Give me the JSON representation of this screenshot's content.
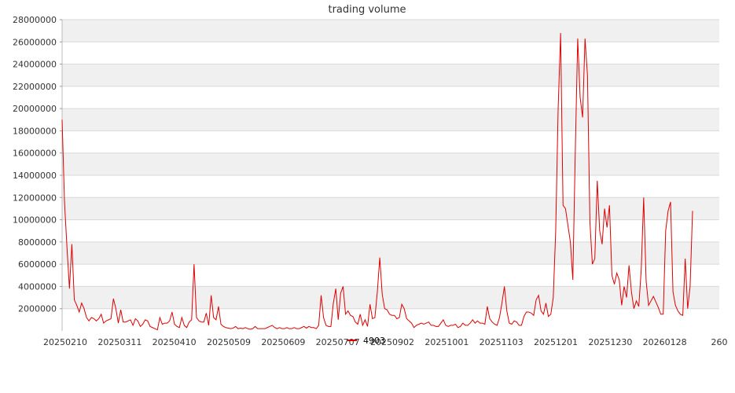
{
  "chart_data": {
    "type": "line",
    "title": "trading volume",
    "xlabel": "",
    "ylabel": "",
    "ylim": [
      0,
      28000000
    ],
    "y_ticks": [
      "2000000",
      "4000000",
      "6000000",
      "8000000",
      "10000000",
      "12000000",
      "14000000",
      "16000000",
      "18000000",
      "20000000",
      "22000000",
      "24000000",
      "26000000",
      "28000000"
    ],
    "x_ticks": [
      "20250210",
      "20250311",
      "20250410",
      "20250509",
      "20250609",
      "20250707",
      "20250902",
      "20251001",
      "20251103",
      "20251201",
      "20251230",
      "20260128",
      "260"
    ],
    "grid": true,
    "legend_position": "bottom-center",
    "series": [
      {
        "name": "4903",
        "color": "#dd0000",
        "values": [
          19000000,
          11500000,
          7500000,
          3800000,
          7800000,
          2800000,
          2300000,
          1700000,
          2500000,
          2000000,
          1200000,
          900000,
          1200000,
          1100000,
          900000,
          1100000,
          1500000,
          700000,
          900000,
          1000000,
          1100000,
          2900000,
          2000000,
          700000,
          1900000,
          800000,
          800000,
          900000,
          1000000,
          500000,
          1100000,
          900000,
          400000,
          600000,
          1000000,
          900000,
          400000,
          300000,
          200000,
          100000,
          1200000,
          600000,
          700000,
          700000,
          900000,
          1700000,
          600000,
          400000,
          300000,
          1200000,
          500000,
          300000,
          800000,
          1000000,
          6000000,
          1200000,
          900000,
          800000,
          800000,
          1600000,
          500000,
          3200000,
          1200000,
          1000000,
          2200000,
          600000,
          400000,
          300000,
          250000,
          200000,
          250000,
          400000,
          200000,
          250000,
          200000,
          300000,
          200000,
          150000,
          200000,
          400000,
          200000,
          200000,
          200000,
          200000,
          300000,
          400000,
          500000,
          300000,
          200000,
          300000,
          200000,
          200000,
          300000,
          200000,
          200000,
          300000,
          200000,
          200000,
          300000,
          400000,
          250000,
          400000,
          300000,
          300000,
          200000,
          500000,
          3200000,
          1200000,
          500000,
          400000,
          400000,
          2500000,
          3800000,
          1000000,
          3400000,
          4000000,
          1500000,
          1800000,
          1400000,
          1300000,
          800000,
          600000,
          1500000,
          500000,
          1000000,
          400000,
          2400000,
          1100000,
          1200000,
          3500000,
          6600000,
          3300000,
          2000000,
          1900000,
          1500000,
          1400000,
          1400000,
          1100000,
          1200000,
          2400000,
          2000000,
          1100000,
          900000,
          700000,
          300000,
          500000,
          600000,
          700000,
          600000,
          700000,
          800000,
          500000,
          500000,
          400000,
          400000,
          700000,
          1000000,
          500000,
          400000,
          500000,
          500000,
          600000,
          300000,
          400000,
          700000,
          500000,
          500000,
          700000,
          1000000,
          700000,
          900000,
          700000,
          700000,
          600000,
          2200000,
          1100000,
          800000,
          600000,
          500000,
          1200000,
          2500000,
          4000000,
          1800000,
          700000,
          600000,
          900000,
          800000,
          500000,
          500000,
          1300000,
          1700000,
          1700000,
          1600000,
          1400000,
          2800000,
          3200000,
          1800000,
          1500000,
          2500000,
          1300000,
          1500000,
          3000000,
          9000000,
          20000000,
          26800000,
          11300000,
          11000000,
          9500000,
          8000000,
          4600000,
          16000000,
          26300000,
          21000000,
          19200000,
          26300000,
          23000000,
          9800000,
          6000000,
          6500000,
          13500000,
          9000000,
          7800000,
          11000000,
          9300000,
          11300000,
          5000000,
          4200000,
          5200000,
          4600000,
          2300000,
          4000000,
          3000000,
          5900000,
          3500000,
          2000000,
          2700000,
          2200000,
          5500000,
          12000000,
          4500000,
          2300000,
          2700000,
          3100000,
          2600000,
          2100000,
          1500000,
          1500000,
          9000000,
          10800000,
          11600000,
          3500000,
          2300000,
          1800000,
          1500000,
          1400000,
          6500000,
          2000000,
          4000000,
          10800000
        ]
      }
    ]
  }
}
